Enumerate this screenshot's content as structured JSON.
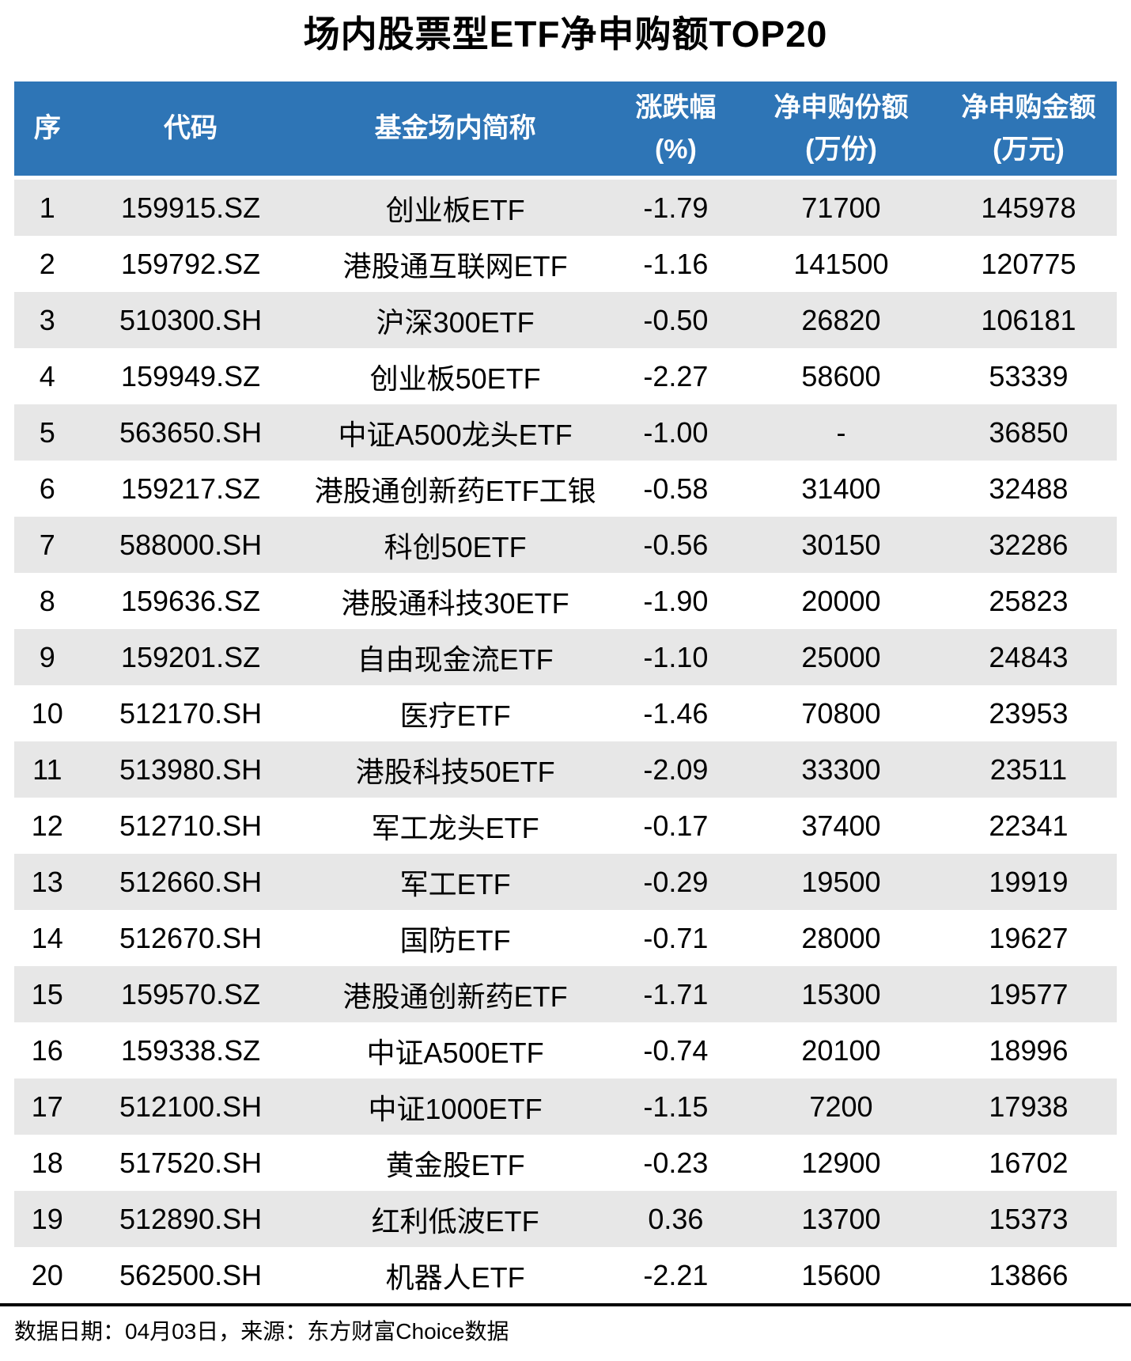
{
  "title": "场内股票型ETF净申购额TOP20",
  "chart_data": {
    "type": "table",
    "title": "场内股票型ETF净申购额TOP20",
    "columns": [
      {
        "label": "序",
        "unit": ""
      },
      {
        "label": "代码",
        "unit": ""
      },
      {
        "label": "基金场内简称",
        "unit": ""
      },
      {
        "label": "涨跌幅",
        "unit": "(%)"
      },
      {
        "label": "净申购份额",
        "unit": "(万份)"
      },
      {
        "label": "净申购金额",
        "unit": "(万元)"
      }
    ],
    "rows": [
      [
        "1",
        "159915.SZ",
        "创业板ETF",
        "-1.79",
        "71700",
        "145978"
      ],
      [
        "2",
        "159792.SZ",
        "港股通互联网ETF",
        "-1.16",
        "141500",
        "120775"
      ],
      [
        "3",
        "510300.SH",
        "沪深300ETF",
        "-0.50",
        "26820",
        "106181"
      ],
      [
        "4",
        "159949.SZ",
        "创业板50ETF",
        "-2.27",
        "58600",
        "53339"
      ],
      [
        "5",
        "563650.SH",
        "中证A500龙头ETF",
        "-1.00",
        "-",
        "36850"
      ],
      [
        "6",
        "159217.SZ",
        "港股通创新药ETF工银",
        "-0.58",
        "31400",
        "32488"
      ],
      [
        "7",
        "588000.SH",
        "科创50ETF",
        "-0.56",
        "30150",
        "32286"
      ],
      [
        "8",
        "159636.SZ",
        "港股通科技30ETF",
        "-1.90",
        "20000",
        "25823"
      ],
      [
        "9",
        "159201.SZ",
        "自由现金流ETF",
        "-1.10",
        "25000",
        "24843"
      ],
      [
        "10",
        "512170.SH",
        "医疗ETF",
        "-1.46",
        "70800",
        "23953"
      ],
      [
        "11",
        "513980.SH",
        "港股科技50ETF",
        "-2.09",
        "33300",
        "23511"
      ],
      [
        "12",
        "512710.SH",
        "军工龙头ETF",
        "-0.17",
        "37400",
        "22341"
      ],
      [
        "13",
        "512660.SH",
        "军工ETF",
        "-0.29",
        "19500",
        "19919"
      ],
      [
        "14",
        "512670.SH",
        "国防ETF",
        "-0.71",
        "28000",
        "19627"
      ],
      [
        "15",
        "159570.SZ",
        "港股通创新药ETF",
        "-1.71",
        "15300",
        "19577"
      ],
      [
        "16",
        "159338.SZ",
        "中证A500ETF",
        "-0.74",
        "20100",
        "18996"
      ],
      [
        "17",
        "512100.SH",
        "中证1000ETF",
        "-1.15",
        "7200",
        "17938"
      ],
      [
        "18",
        "517520.SH",
        "黄金股ETF",
        "-0.23",
        "12900",
        "16702"
      ],
      [
        "19",
        "512890.SH",
        "红利低波ETF",
        "0.36",
        "13700",
        "15373"
      ],
      [
        "20",
        "562500.SH",
        "机器人ETF",
        "-2.21",
        "15600",
        "13866"
      ]
    ]
  },
  "footer": {
    "note": "数据日期：04月03日，来源：东方财富Choice数据"
  },
  "colors": {
    "header_bg": "#2E75B6",
    "header_text": "#FFFFFF",
    "row_alt_bg": "#E7E7E7",
    "body_text": "#000000",
    "divider": "#000000"
  }
}
